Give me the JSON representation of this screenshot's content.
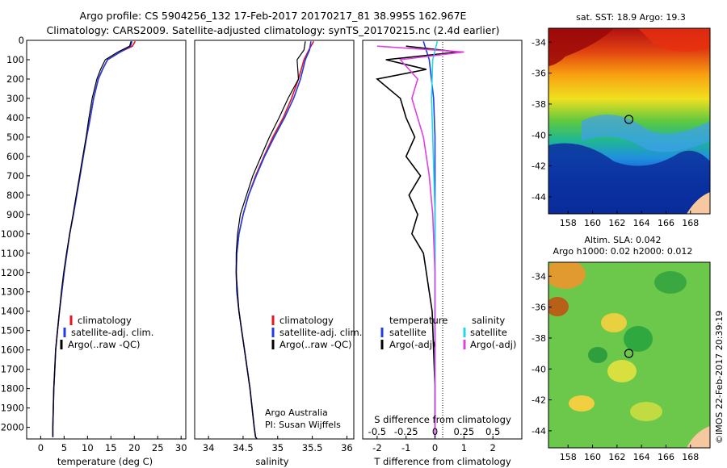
{
  "header": {
    "line1": "Argo profile: CS 5904256_132 17-Feb-2017 20170217_81 38.995S 162.967E",
    "line2": "Climatology: CARS2009. Satellite-adjusted climatology: synTS_20170215.nc (2.4d earlier)"
  },
  "colors": {
    "climatology": "#e8141e",
    "satellite": "#1f3ce6",
    "argo": "#000000",
    "sat_salinity": "#22d8e8",
    "argo_salinity": "#e040e0",
    "land": "#f5c8a0"
  },
  "credit": "©IMOS 22-Feb-2017 20:39:19",
  "chart_data": [
    {
      "type": "line",
      "panel": "temperature",
      "xlabel": "temperature (deg C)",
      "ylabel": "",
      "xlim": [
        -3,
        31
      ],
      "ylim": [
        2060,
        0
      ],
      "xticks": [
        0,
        5,
        10,
        15,
        20,
        25,
        30
      ],
      "yticks": [
        0,
        100,
        200,
        300,
        400,
        500,
        600,
        700,
        800,
        900,
        1000,
        1100,
        1200,
        1300,
        1400,
        1500,
        1600,
        1700,
        1800,
        1900,
        2000
      ],
      "legend": [
        "climatology",
        "satellite-adj. clim.",
        "Argo(..raw -QC)"
      ],
      "legend_position": "lower-middle",
      "series": [
        {
          "name": "climatology",
          "color": "#e8141e",
          "x": [
            20.2,
            19.6,
            17.0,
            14.3,
            13.2,
            12.3,
            11.3,
            10.6,
            9.8,
            9.1,
            8.4,
            7.7,
            7.0,
            6.2,
            5.6,
            5.0,
            4.5,
            4.0,
            3.6,
            3.2,
            3.0,
            2.8,
            2.7,
            2.6,
            2.6
          ],
          "y": [
            5,
            30,
            60,
            100,
            150,
            200,
            300,
            400,
            500,
            600,
            700,
            800,
            900,
            1000,
            1100,
            1200,
            1300,
            1400,
            1500,
            1600,
            1700,
            1800,
            1900,
            2000,
            2050
          ]
        },
        {
          "name": "satellite-adj. clim.",
          "color": "#1f3ce6",
          "x": [
            19.5,
            19.2,
            17.0,
            14.3,
            13.2,
            12.3,
            11.3,
            10.6,
            9.8,
            9.1,
            8.4,
            7.7,
            7.0,
            6.2,
            5.6,
            5.0,
            4.5,
            4.0,
            3.6,
            3.2,
            3.0,
            2.8,
            2.7,
            2.6,
            2.6
          ],
          "y": [
            5,
            30,
            60,
            100,
            150,
            200,
            300,
            400,
            500,
            600,
            700,
            800,
            900,
            1000,
            1100,
            1200,
            1300,
            1400,
            1500,
            1600,
            1700,
            1800,
            1900,
            2000,
            2050
          ]
        },
        {
          "name": "Argo(..raw -QC)",
          "color": "#000000",
          "x": [
            19.3,
            19.0,
            16.5,
            13.8,
            12.8,
            12.0,
            11.0,
            10.3,
            9.7,
            9.0,
            8.3,
            7.6,
            6.9,
            6.2,
            5.5,
            4.9,
            4.4,
            4.0,
            3.6,
            3.2,
            3.0,
            2.8,
            2.7,
            2.6,
            2.6
          ],
          "y": [
            5,
            30,
            60,
            100,
            150,
            200,
            300,
            400,
            500,
            600,
            700,
            800,
            900,
            1000,
            1100,
            1200,
            1300,
            1400,
            1500,
            1600,
            1700,
            1800,
            1900,
            2000,
            2050
          ]
        }
      ]
    },
    {
      "type": "line",
      "panel": "salinity",
      "xlabel": "salinity",
      "xlim": [
        33.8,
        36.1
      ],
      "ylim": [
        2060,
        0
      ],
      "xticks": [
        34,
        34.5,
        35,
        35.5,
        36
      ],
      "legend": [
        "climatology",
        "satellite-adj. clim.",
        "Argo(..raw -QC)"
      ],
      "legend_position": "lower-middle",
      "annotation": [
        "Argo Australia",
        "PI: Susan Wijffels"
      ],
      "series": [
        {
          "name": "climatology",
          "color": "#e8141e",
          "x": [
            35.52,
            35.45,
            35.38,
            35.3,
            35.2,
            35.08,
            34.93,
            34.8,
            34.68,
            34.58,
            34.5,
            34.44,
            34.41,
            34.4,
            34.41,
            34.44,
            34.48,
            34.52,
            34.56,
            34.6,
            34.63,
            34.66,
            34.68,
            34.7
          ],
          "y": [
            5,
            50,
            100,
            200,
            300,
            400,
            500,
            600,
            700,
            800,
            900,
            1000,
            1100,
            1200,
            1300,
            1400,
            1500,
            1600,
            1700,
            1800,
            1900,
            2000,
            2050,
            2060
          ]
        },
        {
          "name": "satellite-adj. clim.",
          "color": "#1f3ce6",
          "x": [
            35.48,
            35.46,
            35.4,
            35.33,
            35.23,
            35.1,
            34.95,
            34.81,
            34.69,
            34.58,
            34.5,
            34.44,
            34.41,
            34.4,
            34.41,
            34.44,
            34.48,
            34.52,
            34.56,
            34.6,
            34.63,
            34.66,
            34.68,
            34.7
          ],
          "y": [
            5,
            50,
            100,
            200,
            300,
            400,
            500,
            600,
            700,
            800,
            900,
            1000,
            1100,
            1200,
            1300,
            1400,
            1500,
            1600,
            1700,
            1800,
            1900,
            2000,
            2050,
            2060
          ]
        },
        {
          "name": "Argo(..raw -QC)",
          "color": "#000000",
          "x": [
            35.4,
            35.38,
            35.28,
            35.3,
            35.15,
            35.02,
            34.88,
            34.76,
            34.64,
            34.55,
            34.46,
            34.42,
            34.4,
            34.4,
            34.42,
            34.44,
            34.48,
            34.52,
            34.56,
            34.6,
            34.63,
            34.66,
            34.68,
            34.7
          ],
          "y": [
            5,
            50,
            100,
            200,
            300,
            400,
            500,
            600,
            700,
            800,
            900,
            1000,
            1100,
            1200,
            1300,
            1400,
            1500,
            1600,
            1700,
            1800,
            1900,
            2000,
            2050,
            2060
          ]
        }
      ]
    },
    {
      "type": "line",
      "panel": "differences",
      "xlabel": "T difference from climatology",
      "xlabel2": "S difference from climatology",
      "xlim": [
        -2.5,
        3.0
      ],
      "ylim": [
        2060,
        0
      ],
      "xticks_T": [
        "-2",
        "-1",
        "0",
        "1",
        "2"
      ],
      "xticks_S": [
        "-0.5",
        "-0.25",
        "0",
        "0.25",
        "0.5"
      ],
      "legend_headers": [
        "temperature",
        "salinity"
      ],
      "legend": [
        "satellite",
        "Argo(-adj)",
        "satellite",
        "Argo(-adj)"
      ],
      "series": [
        {
          "name": "temperature satellite",
          "color": "#1f3ce6",
          "x": [
            -0.4,
            -0.2,
            -0.05,
            0.0,
            0.0,
            0.0,
            0.0,
            0.0,
            0.0,
            0.0,
            0.0,
            0.0,
            0.0
          ],
          "y": [
            5,
            100,
            300,
            500,
            700,
            900,
            1100,
            1300,
            1500,
            1700,
            1900,
            2000,
            2050
          ]
        },
        {
          "name": "temperature Argo(-adj)",
          "color": "#000000",
          "x": [
            -1.0,
            0.8,
            -1.7,
            -0.3,
            -2.0,
            -1.2,
            -1.0,
            -0.7,
            -1.0,
            -0.5,
            -0.9,
            -0.6,
            -0.8,
            -0.4,
            -0.3,
            -0.2,
            -0.1,
            0.0,
            0.0
          ],
          "y": [
            30,
            60,
            100,
            150,
            200,
            300,
            400,
            500,
            600,
            700,
            800,
            900,
            1000,
            1100,
            1200,
            1300,
            1400,
            1800,
            2050
          ]
        },
        {
          "name": "salinity satellite",
          "color": "#22d8e8",
          "x": [
            0.02,
            -0.02,
            -0.03,
            -0.02,
            -0.01,
            0.0,
            0.0,
            0.0,
            0.0,
            0.0,
            0.0
          ],
          "y": [
            5,
            100,
            300,
            500,
            700,
            900,
            1100,
            1300,
            1500,
            1800,
            2050
          ]
        },
        {
          "name": "salinity Argo(-adj)",
          "color": "#e040e0",
          "x": [
            -0.5,
            0.25,
            -0.3,
            -0.15,
            -0.2,
            -0.1,
            -0.05,
            -0.02,
            0.0,
            0.0,
            0.0
          ],
          "y": [
            30,
            60,
            100,
            200,
            300,
            500,
            700,
            900,
            1200,
            1600,
            2050
          ]
        }
      ]
    },
    {
      "type": "heatmap",
      "panel": "sst-map",
      "title": "sat. SST: 18.9  Argo: 19.3",
      "xticks": [
        158,
        160,
        162,
        164,
        166,
        168
      ],
      "yticks": [
        -34,
        -36,
        -38,
        -40,
        -42,
        -44
      ],
      "marker": {
        "lon": 162.967,
        "lat": -38.995
      }
    },
    {
      "type": "heatmap",
      "panel": "sla-map",
      "title_line1": "Altim. SLA: 0.042",
      "title_line2": "Argo h1000: 0.02 h2000: 0.012",
      "xticks": [
        158,
        160,
        162,
        164,
        166,
        168
      ],
      "yticks": [
        -34,
        -36,
        -38,
        -40,
        -42,
        -44
      ],
      "marker": {
        "lon": 162.967,
        "lat": -38.995
      }
    }
  ]
}
